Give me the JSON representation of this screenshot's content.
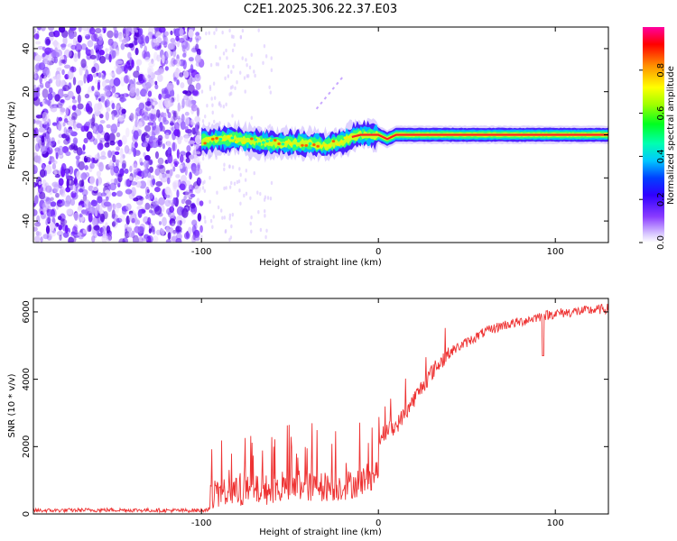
{
  "chart_data": [
    {
      "type": "heatmap",
      "title": "C2E1.2025.306.22.37.E03",
      "xlabel": "Height of straight line (km)",
      "ylabel": "Frequency (Hz)",
      "xlim": [
        -195,
        130
      ],
      "ylim": [
        -50,
        50
      ],
      "xticks": [
        -100,
        0,
        100
      ],
      "xtick_labels": [
        "-100",
        "0",
        "100"
      ],
      "yticks": [
        -40,
        -20,
        0,
        20,
        40
      ],
      "ytick_labels": [
        "-40",
        "-20",
        "0",
        "20",
        "40"
      ],
      "colorbar": {
        "label": "Normalized spectral amplitude",
        "range": [
          0,
          1
        ],
        "ticks": [
          0.0,
          0.2,
          0.4,
          0.6,
          0.8
        ],
        "tick_labels": [
          "0.0",
          "0.2",
          "0.4",
          "0.6",
          "0.8"
        ],
        "colors": [
          "#ffffff",
          "#b088ff",
          "#6a00ff",
          "#0000ff",
          "#00c8ff",
          "#00ff60",
          "#b4ff00",
          "#ffff00",
          "#ff8c00",
          "#ff0000",
          "#ff00a0"
        ]
      },
      "description_values": {
        "noise_region_x": [
          -195,
          -100
        ],
        "band_center_track": [
          [
            -100,
            -3
          ],
          [
            -90,
            -2
          ],
          [
            -80,
            -2
          ],
          [
            -70,
            -3
          ],
          [
            -60,
            -4
          ],
          [
            -50,
            -4
          ],
          [
            -40,
            -4
          ],
          [
            -30,
            -5
          ],
          [
            -20,
            -3
          ],
          [
            -15,
            -1
          ],
          [
            -10,
            0
          ],
          [
            0,
            0
          ],
          [
            5,
            -2
          ],
          [
            10,
            0
          ],
          [
            130,
            0
          ]
        ]
      }
    },
    {
      "type": "line",
      "xlabel": "Height of straight line (km)",
      "ylabel": "SNR (10 * v/v)",
      "xlim": [
        -195,
        130
      ],
      "ylim": [
        0,
        6400
      ],
      "xticks": [
        -100,
        0,
        100
      ],
      "xtick_labels": [
        "-100",
        "0",
        "100"
      ],
      "yticks": [
        0,
        2000,
        4000,
        6000
      ],
      "ytick_labels": [
        "0",
        "2000",
        "4000",
        "6000"
      ],
      "series": [
        {
          "name": "SNR",
          "color": "#ee3333",
          "x": [
            -195,
            -150,
            -110,
            -100,
            -95,
            -90,
            -85,
            -80,
            -70,
            -60,
            -50,
            -40,
            -30,
            -20,
            -15,
            -10,
            -5,
            0,
            5,
            10,
            15,
            20,
            25,
            30,
            35,
            40,
            50,
            60,
            70,
            80,
            90,
            100,
            110,
            120,
            130
          ],
          "values": [
            100,
            120,
            100,
            110,
            150,
            350,
            500,
            550,
            700,
            800,
            900,
            1000,
            1050,
            1100,
            1200,
            1500,
            1900,
            2200,
            2500,
            2600,
            3000,
            3400,
            3800,
            4200,
            4500,
            4800,
            5100,
            5400,
            5600,
            5700,
            5850,
            5950,
            6000,
            6050,
            6100
          ]
        }
      ]
    }
  ]
}
